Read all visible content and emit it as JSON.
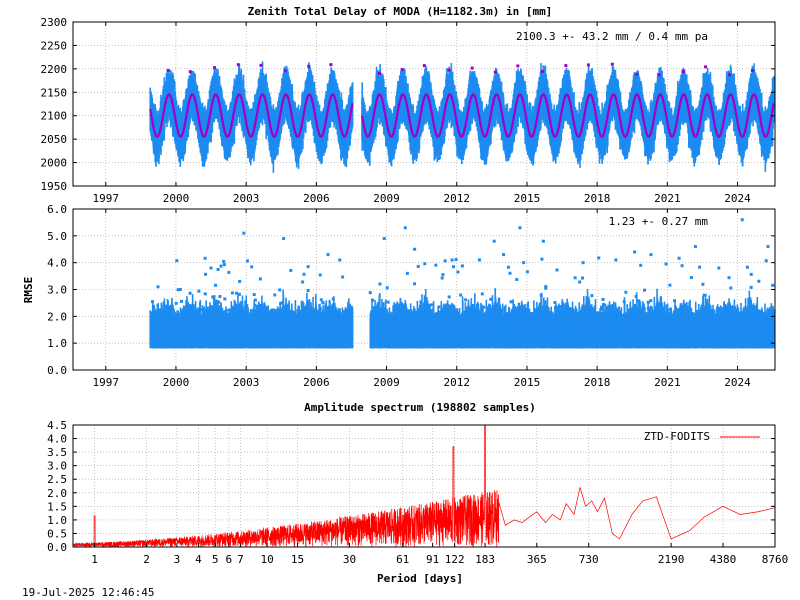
{
  "colors": {
    "observation": "#1e8cf0",
    "model": "#a000c8",
    "outlier": "#a000c8",
    "spectrum": "#ff0000"
  },
  "timestamp": "19-Jul-2025 12:46:45",
  "chart_data": [
    {
      "type": "scatter",
      "title": "Zenith Total Delay of MODA (H=1182.3m) in [mm]",
      "annotation": "2100.3 +-  43.2 mm /  0.4 mm pa",
      "xlabel": "",
      "ylabel": "",
      "xlim": [
        1995.6,
        2025.6
      ],
      "ylim": [
        1950,
        2300
      ],
      "x_ticks": [
        "1997",
        "2000",
        "2003",
        "2006",
        "2009",
        "2012",
        "2015",
        "2018",
        "2021",
        "2024"
      ],
      "y_ticks": [
        "1950",
        "2000",
        "2050",
        "2100",
        "2150",
        "2200",
        "2250",
        "2300"
      ],
      "grid": true,
      "series_summary": {
        "start": 1998.9,
        "end": 2025.55,
        "gap": [
          2007.55,
          2007.95
        ],
        "mean": 2100.3,
        "annual_amplitude": 45,
        "noise_halfwidth": 55,
        "max_spike": 2235,
        "min_spike": 1960
      }
    },
    {
      "type": "scatter",
      "title": "",
      "annotation": "1.23 +-  0.27 mm",
      "xlabel": "",
      "ylabel": "RMSE",
      "xlim": [
        1995.6,
        2025.6
      ],
      "ylim": [
        0.0,
        6.0
      ],
      "x_ticks": [
        "1997",
        "2000",
        "2003",
        "2006",
        "2009",
        "2012",
        "2015",
        "2018",
        "2021",
        "2024"
      ],
      "y_ticks": [
        "0.0",
        "1.0",
        "2.0",
        "3.0",
        "4.0",
        "5.0",
        "6.0"
      ],
      "grid": true,
      "series_summary": {
        "start": 1998.9,
        "end": 2025.55,
        "gap": [
          2007.55,
          2008.3
        ],
        "band_low": 0.8,
        "band_high": 2.0,
        "outliers": [
          [
            2001.5,
            3.8
          ],
          [
            2002.9,
            5.1
          ],
          [
            2004.6,
            4.9
          ],
          [
            2006.5,
            4.3
          ],
          [
            2007.0,
            4.1
          ],
          [
            2008.9,
            4.9
          ],
          [
            2009.8,
            5.3
          ],
          [
            2010.2,
            4.5
          ],
          [
            2011.8,
            4.1
          ],
          [
            2013.6,
            4.8
          ],
          [
            2014.0,
            4.3
          ],
          [
            2014.7,
            5.3
          ],
          [
            2015.7,
            4.8
          ],
          [
            2017.4,
            4.0
          ],
          [
            2018.8,
            4.1
          ],
          [
            2019.6,
            4.4
          ],
          [
            2020.3,
            4.3
          ],
          [
            2022.2,
            4.6
          ],
          [
            2023.2,
            3.8
          ],
          [
            2024.2,
            5.6
          ],
          [
            2025.3,
            4.6
          ]
        ]
      }
    },
    {
      "type": "line",
      "title": "Amplitude spectrum (198802 samples)",
      "xlabel": "Period [days]",
      "ylabel": "",
      "xscale": "log",
      "xlim": [
        0.75,
        8760
      ],
      "ylim": [
        0.0,
        4.5
      ],
      "x_ticks": [
        "1",
        "2",
        "3",
        "4",
        "5",
        "6",
        "7",
        "10",
        "15",
        "30",
        "61",
        "91",
        "122",
        "183",
        "365",
        "730",
        "2190",
        "4380",
        "8760"
      ],
      "y_ticks": [
        "0.0",
        "0.5",
        "1.0",
        "1.5",
        "2.0",
        "2.5",
        "3.0",
        "3.5",
        "4.0",
        "4.5"
      ],
      "grid": true,
      "legend": {
        "position": "top-right",
        "entries": [
          "ZTD-FODITS"
        ]
      },
      "series": [
        {
          "name": "ZTD-FODITS",
          "peaks": [
            {
              "period": 1.0,
              "amplitude": 1.15
            },
            {
              "period": 120,
              "amplitude": 3.7
            },
            {
              "period": 183,
              "amplitude": 4.5
            },
            {
              "period": 365,
              "amplitude": 1.3
            }
          ],
          "long_period": {
            "period": [
              240,
              270,
              300,
              330,
              365,
              410,
              450,
              500,
              540,
              600,
              650,
              700,
              760,
              820,
              900,
              1000,
              1100,
              1300,
              1500,
              1800,
              2190,
              2800,
              3400,
              4380,
              5500,
              7000,
              8760
            ],
            "amplitude": [
              0.8,
              1.0,
              0.9,
              1.1,
              1.3,
              0.9,
              1.2,
              1.0,
              1.6,
              1.2,
              2.2,
              1.5,
              1.7,
              1.3,
              1.8,
              0.5,
              0.3,
              1.2,
              1.7,
              1.85,
              0.3,
              0.6,
              1.1,
              1.5,
              1.2,
              1.3,
              1.45
            ]
          }
        }
      ]
    }
  ]
}
